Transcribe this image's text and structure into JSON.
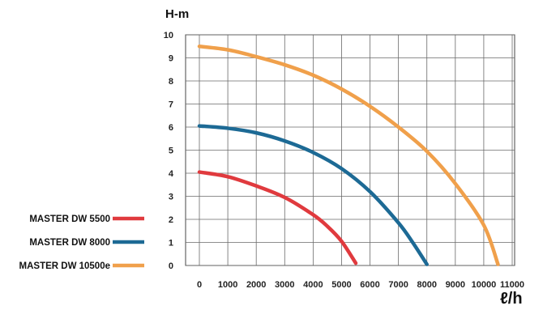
{
  "chart_data": {
    "type": "line",
    "title": "",
    "ylabel": "H-m",
    "xlabel": "ℓ/h",
    "xlim": [
      0,
      11000
    ],
    "ylim": [
      0,
      10
    ],
    "xticks": [
      "0",
      "1000",
      "2000",
      "3000",
      "4000",
      "5000",
      "6000",
      "7000",
      "8000",
      "9000",
      "10000",
      "11000"
    ],
    "yticks": [
      "0",
      "1",
      "2",
      "3",
      "4",
      "5",
      "6",
      "7",
      "8",
      "9",
      "10"
    ],
    "grid": true,
    "legend_position": "bottom-left",
    "series": [
      {
        "name": "MASTER DW 5500",
        "color": "#e03a3e",
        "x": [
          0,
          1000,
          2000,
          3000,
          4000,
          4500,
          5000,
          5500
        ],
        "y": [
          4.05,
          3.85,
          3.45,
          2.95,
          2.2,
          1.7,
          1.05,
          0.1
        ]
      },
      {
        "name": "MASTER DW 8000",
        "color": "#1d6a95",
        "x": [
          0,
          1000,
          2000,
          3000,
          4000,
          5000,
          6000,
          7000,
          7500,
          8000
        ],
        "y": [
          6.05,
          5.95,
          5.75,
          5.4,
          4.9,
          4.2,
          3.2,
          1.85,
          1.0,
          0.05
        ]
      },
      {
        "name": "MASTER DW 10500e",
        "color": "#f0a04b",
        "x": [
          0,
          1000,
          2000,
          3000,
          4000,
          5000,
          6000,
          7000,
          8000,
          9000,
          10000,
          10500
        ],
        "y": [
          9.5,
          9.35,
          9.05,
          8.7,
          8.25,
          7.65,
          6.9,
          6.0,
          4.95,
          3.55,
          1.75,
          0.05
        ]
      }
    ]
  }
}
